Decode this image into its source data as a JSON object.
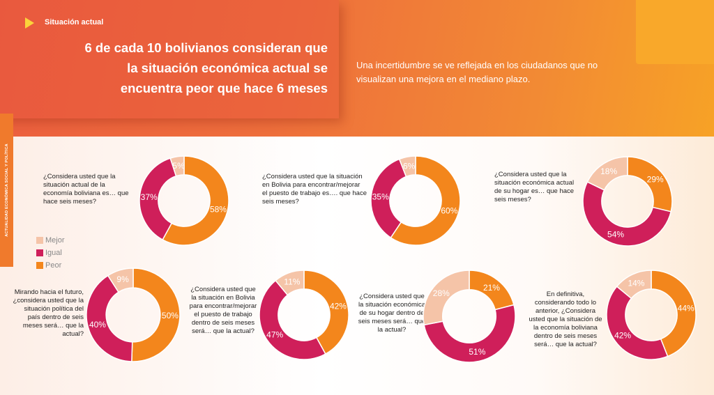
{
  "header": {
    "section_label": "Situación actual",
    "headline": "6 de cada 10 bolivianos consideran que la situación económica actual se encuentra peor que hace 6 meses",
    "subheadline": "Una incertidumbre se ve reflejada en los ciudadanos que no visualizan una mejora en el mediano plazo.",
    "side_tab": "ACTUALIDAD ECONÓMICA SOCIAL Y POLÍTICA"
  },
  "colors": {
    "Mejor": "#f5c4a8",
    "Igual": "#cf1f5a",
    "Peor": "#f3861c"
  },
  "legend": [
    "Mejor",
    "Igual",
    "Peor"
  ],
  "chart_data": [
    {
      "type": "pie",
      "question": "¿Considera usted que la situación actual de la economía boliviana es… que hace seis meses?",
      "categories": [
        "Mejor",
        "Igual",
        "Peor"
      ],
      "values": [
        5,
        37,
        58
      ]
    },
    {
      "type": "pie",
      "question": "¿Considera usted que la situación en Bolivia para encontrar/mejorar el puesto de trabajo es…. que hace seis meses?",
      "categories": [
        "Mejor",
        "Igual",
        "Peor"
      ],
      "values": [
        6,
        35,
        60
      ]
    },
    {
      "type": "pie",
      "question": "¿Considera usted que la situación económica actual de su hogar es… que hace seis meses?",
      "categories": [
        "Mejor",
        "Igual",
        "Peor"
      ],
      "values": [
        18,
        54,
        29
      ]
    },
    {
      "type": "pie",
      "question": "Mirando hacia el futuro, ¿considera usted que la situación política del país dentro de seis meses será… que la actual?",
      "categories": [
        "Mejor",
        "Igual",
        "Peor"
      ],
      "values": [
        9,
        40,
        50
      ]
    },
    {
      "type": "pie",
      "question": "¿Considera usted que la situación en Bolivia para encontrar/mejorar el puesto de trabajo dentro de seis meses será… que la actual?",
      "categories": [
        "Mejor",
        "Igual",
        "Peor"
      ],
      "values": [
        11,
        47,
        42
      ]
    },
    {
      "type": "pie",
      "question": "¿Considera usted que la situación económica de su hogar dentro de seis meses será… que la actual?",
      "categories": [
        "Mejor",
        "Igual",
        "Peor"
      ],
      "values": [
        28,
        51,
        21
      ]
    },
    {
      "type": "pie",
      "question": "En definitiva, considerando todo lo anterior, ¿Considera usted que la situación de la economía boliviana dentro de seis meses será… que la actual?",
      "categories": [
        "Mejor",
        "Igual",
        "Peor"
      ],
      "values": [
        14,
        42,
        44
      ]
    }
  ]
}
